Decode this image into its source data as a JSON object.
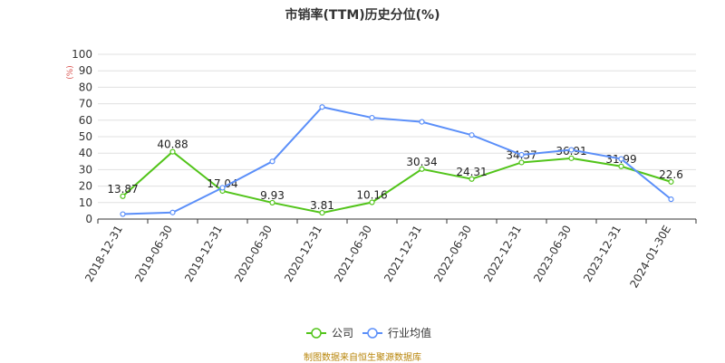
{
  "chart_data": {
    "type": "line",
    "title": "市销率(TTM)历史分位(%)",
    "ylabel": "(%)",
    "xlabel": "",
    "ylim": [
      0,
      100
    ],
    "yticks": [
      0,
      10,
      20,
      30,
      40,
      50,
      60,
      70,
      80,
      90,
      100
    ],
    "categories": [
      "2018-12-31",
      "2019-06-30",
      "2019-12-31",
      "2020-06-30",
      "2020-12-31",
      "2021-06-30",
      "2021-12-31",
      "2022-06-30",
      "2022-12-31",
      "2023-06-30",
      "2023-12-31",
      "2024-01-30E"
    ],
    "series": [
      {
        "name": "公司",
        "color": "#52c41a",
        "show_labels": true,
        "values": [
          13.87,
          40.88,
          17.04,
          9.93,
          3.81,
          10.16,
          30.34,
          24.31,
          34.37,
          36.91,
          31.99,
          22.6
        ]
      },
      {
        "name": "行业均值",
        "color": "#5b8ff9",
        "show_labels": false,
        "values": [
          3,
          4,
          19,
          35,
          68,
          61.5,
          59,
          51,
          39,
          42,
          36.5,
          12
        ]
      }
    ],
    "grid": true,
    "legend": "bottom"
  },
  "footer": {
    "source": "制图数据来自恒生聚源数据库"
  }
}
